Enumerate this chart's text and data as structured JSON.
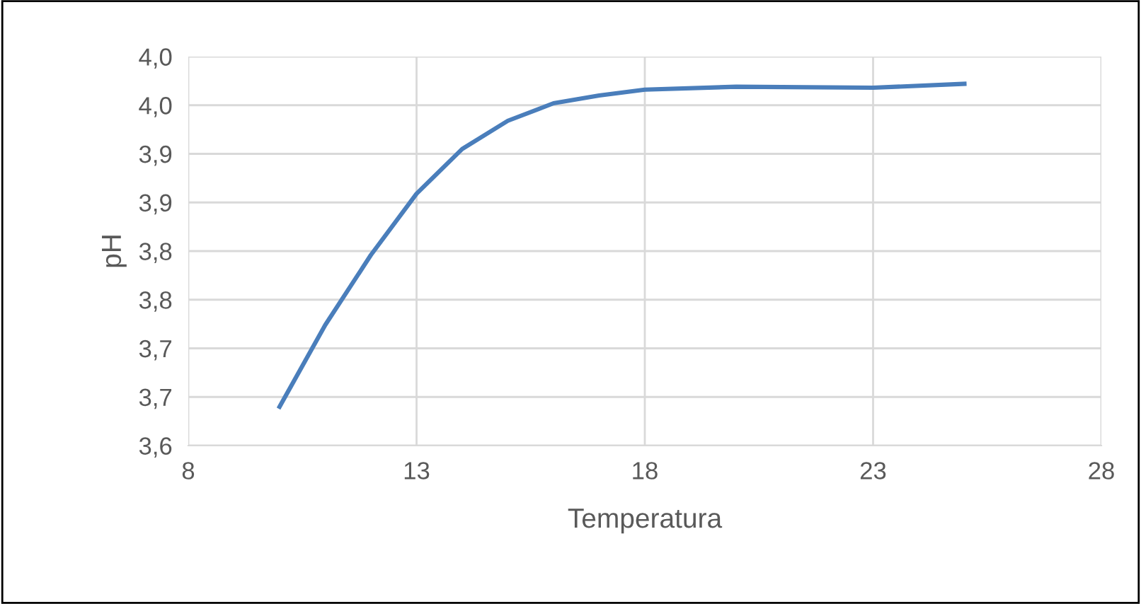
{
  "chart_data": {
    "type": "line",
    "xlabel": "Temperatura",
    "ylabel": "pH",
    "x": [
      10,
      11,
      12,
      13,
      14,
      15,
      16,
      17,
      18,
      20,
      23,
      25
    ],
    "series": [
      {
        "color": "#4a7ebb",
        "values": [
          3.64,
          3.724,
          3.796,
          3.859,
          3.905,
          3.934,
          3.952,
          3.96,
          3.966,
          3.969,
          3.968,
          3.972
        ]
      }
    ],
    "xlim": [
      8,
      28
    ],
    "xticks": [
      8,
      13,
      18,
      23,
      28
    ],
    "ylim": [
      3.6,
      4.0
    ],
    "yticks": [
      {
        "value": 3.6,
        "label": "3,6"
      },
      {
        "value": 3.65,
        "label": "3,7"
      },
      {
        "value": 3.7,
        "label": "3,7"
      },
      {
        "value": 3.75,
        "label": "3,8"
      },
      {
        "value": 3.8,
        "label": "3,8"
      },
      {
        "value": 3.85,
        "label": "3,9"
      },
      {
        "value": 3.9,
        "label": "3,9"
      },
      {
        "value": 3.95,
        "label": "4,0"
      },
      {
        "value": 4.0,
        "label": "4,0"
      }
    ],
    "grid": true,
    "marker": "none",
    "line_style": "solid"
  }
}
